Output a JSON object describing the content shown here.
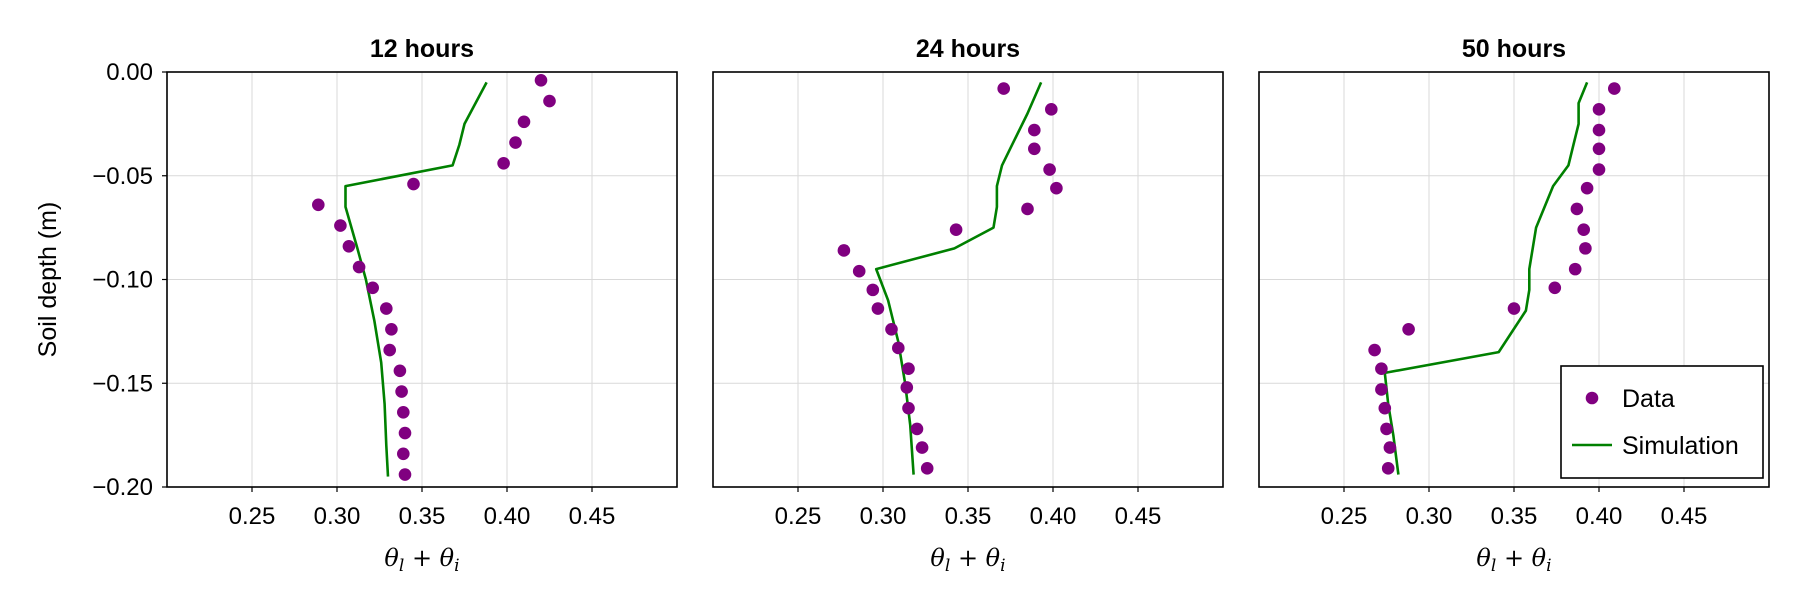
{
  "chart_data": {
    "type": "scatter",
    "ylabel": "Soil depth (m)",
    "xlabel": "θ_l + θ_i",
    "xlim": [
      0.2,
      0.5
    ],
    "ylim": [
      -0.2,
      0.0
    ],
    "xticks": [
      "0.25",
      "0.30",
      "0.35",
      "0.40",
      "0.45"
    ],
    "yticks": [
      "0.00",
      "−0.05",
      "−0.10",
      "−0.15",
      "−0.20"
    ],
    "grid": true,
    "legend": {
      "placement": "bottom-right",
      "entries": [
        "Data",
        "Simulation"
      ]
    },
    "colors": {
      "data": "#800080",
      "simulation": "#008000"
    },
    "panels": [
      {
        "title": "12 hours",
        "data": [
          [
            0.42,
            -0.004
          ],
          [
            0.425,
            -0.014
          ],
          [
            0.41,
            -0.024
          ],
          [
            0.405,
            -0.034
          ],
          [
            0.398,
            -0.044
          ],
          [
            0.345,
            -0.054
          ],
          [
            0.289,
            -0.064
          ],
          [
            0.302,
            -0.074
          ],
          [
            0.307,
            -0.084
          ],
          [
            0.313,
            -0.094
          ],
          [
            0.321,
            -0.104
          ],
          [
            0.329,
            -0.114
          ],
          [
            0.332,
            -0.124
          ],
          [
            0.331,
            -0.134
          ],
          [
            0.337,
            -0.144
          ],
          [
            0.338,
            -0.154
          ],
          [
            0.339,
            -0.164
          ],
          [
            0.34,
            -0.174
          ],
          [
            0.339,
            -0.184
          ],
          [
            0.34,
            -0.194
          ]
        ],
        "simulation": [
          [
            0.388,
            -0.005
          ],
          [
            0.375,
            -0.025
          ],
          [
            0.372,
            -0.035
          ],
          [
            0.368,
            -0.045
          ],
          [
            0.305,
            -0.055
          ],
          [
            0.305,
            -0.065
          ],
          [
            0.312,
            -0.085
          ],
          [
            0.317,
            -0.1
          ],
          [
            0.322,
            -0.12
          ],
          [
            0.326,
            -0.14
          ],
          [
            0.328,
            -0.16
          ],
          [
            0.329,
            -0.18
          ],
          [
            0.33,
            -0.195
          ]
        ]
      },
      {
        "title": "24 hours",
        "data": [
          [
            0.371,
            -0.008
          ],
          [
            0.399,
            -0.018
          ],
          [
            0.389,
            -0.028
          ],
          [
            0.389,
            -0.037
          ],
          [
            0.398,
            -0.047
          ],
          [
            0.402,
            -0.056
          ],
          [
            0.385,
            -0.066
          ],
          [
            0.343,
            -0.076
          ],
          [
            0.277,
            -0.086
          ],
          [
            0.286,
            -0.096
          ],
          [
            0.294,
            -0.105
          ],
          [
            0.297,
            -0.114
          ],
          [
            0.305,
            -0.124
          ],
          [
            0.309,
            -0.133
          ],
          [
            0.315,
            -0.143
          ],
          [
            0.314,
            -0.152
          ],
          [
            0.315,
            -0.162
          ],
          [
            0.32,
            -0.172
          ],
          [
            0.323,
            -0.181
          ],
          [
            0.326,
            -0.191
          ]
        ],
        "simulation": [
          [
            0.393,
            -0.005
          ],
          [
            0.385,
            -0.02
          ],
          [
            0.376,
            -0.035
          ],
          [
            0.37,
            -0.045
          ],
          [
            0.367,
            -0.055
          ],
          [
            0.367,
            -0.065
          ],
          [
            0.365,
            -0.075
          ],
          [
            0.342,
            -0.085
          ],
          [
            0.296,
            -0.095
          ],
          [
            0.303,
            -0.11
          ],
          [
            0.309,
            -0.13
          ],
          [
            0.313,
            -0.15
          ],
          [
            0.316,
            -0.17
          ],
          [
            0.318,
            -0.194
          ]
        ]
      },
      {
        "title": "50 hours",
        "data": [
          [
            0.409,
            -0.008
          ],
          [
            0.4,
            -0.018
          ],
          [
            0.4,
            -0.028
          ],
          [
            0.4,
            -0.037
          ],
          [
            0.4,
            -0.047
          ],
          [
            0.393,
            -0.056
          ],
          [
            0.387,
            -0.066
          ],
          [
            0.391,
            -0.076
          ],
          [
            0.392,
            -0.085
          ],
          [
            0.386,
            -0.095
          ],
          [
            0.374,
            -0.104
          ],
          [
            0.35,
            -0.114
          ],
          [
            0.288,
            -0.124
          ],
          [
            0.268,
            -0.134
          ],
          [
            0.272,
            -0.143
          ],
          [
            0.272,
            -0.153
          ],
          [
            0.274,
            -0.162
          ],
          [
            0.275,
            -0.172
          ],
          [
            0.277,
            -0.181
          ],
          [
            0.276,
            -0.191
          ]
        ],
        "simulation": [
          [
            0.393,
            -0.005
          ],
          [
            0.388,
            -0.015
          ],
          [
            0.388,
            -0.025
          ],
          [
            0.385,
            -0.035
          ],
          [
            0.382,
            -0.045
          ],
          [
            0.373,
            -0.055
          ],
          [
            0.368,
            -0.065
          ],
          [
            0.363,
            -0.075
          ],
          [
            0.361,
            -0.085
          ],
          [
            0.359,
            -0.095
          ],
          [
            0.359,
            -0.105
          ],
          [
            0.357,
            -0.115
          ],
          [
            0.341,
            -0.135
          ],
          [
            0.274,
            -0.145
          ],
          [
            0.276,
            -0.16
          ],
          [
            0.279,
            -0.175
          ],
          [
            0.282,
            -0.194
          ]
        ]
      }
    ]
  }
}
